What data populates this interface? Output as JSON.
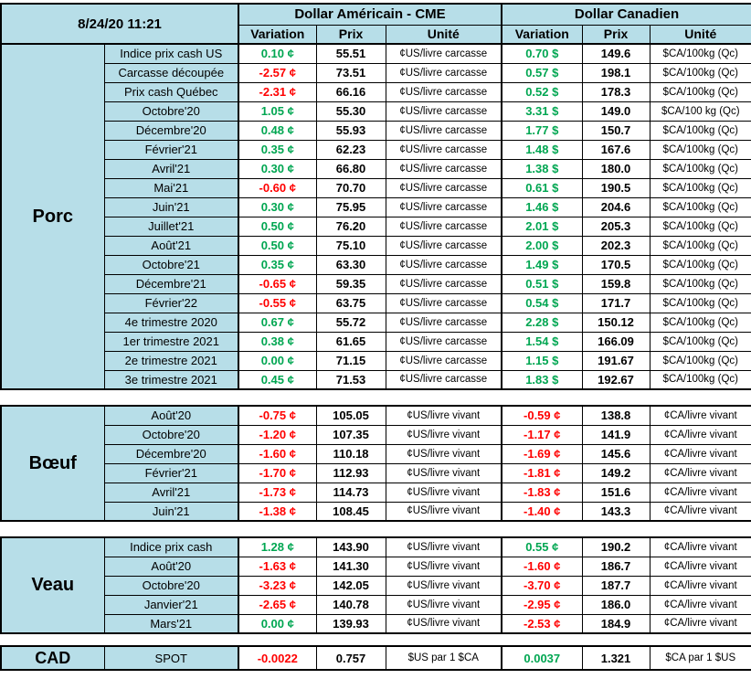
{
  "header": {
    "timestamp": "8/24/20 11:21",
    "us_title": "Dollar Américain - CME",
    "ca_title": "Dollar Canadien",
    "col_headers": [
      "Variation",
      "Prix",
      "Unité"
    ]
  },
  "colors": {
    "positive": "#00A651",
    "negative": "#FF0000",
    "header_bg": "#B7DEE8",
    "border": "#000000"
  },
  "sections": [
    {
      "id": "porc",
      "name": "Porc",
      "rows": [
        {
          "label": "Indice prix cash US",
          "us_var": "0.10 ¢",
          "us_prix": "55.51",
          "us_unit": "¢US/livre carcasse",
          "ca_var": "0.70 $",
          "ca_prix": "149.6",
          "ca_unit": "$CA/100kg (Qc)"
        },
        {
          "label": "Carcasse découpée",
          "us_var": "-2.57 ¢",
          "us_prix": "73.51",
          "us_unit": "¢US/livre carcasse",
          "ca_var": "0.57 $",
          "ca_prix": "198.1",
          "ca_unit": "$CA/100kg (Qc)"
        },
        {
          "label": "Prix cash Québec",
          "us_var": "-2.31 ¢",
          "us_prix": "66.16",
          "us_unit": "¢US/livre carcasse",
          "ca_var": "0.52 $",
          "ca_prix": "178.3",
          "ca_unit": "$CA/100kg (Qc)"
        },
        {
          "label": "Octobre'20",
          "us_var": "1.05 ¢",
          "us_prix": "55.30",
          "us_unit": "¢US/livre carcasse",
          "ca_var": "3.31 $",
          "ca_prix": "149.0",
          "ca_unit": "$CA/100 kg (Qc)"
        },
        {
          "label": "Décembre'20",
          "us_var": "0.48 ¢",
          "us_prix": "55.93",
          "us_unit": "¢US/livre carcasse",
          "ca_var": "1.77 $",
          "ca_prix": "150.7",
          "ca_unit": "$CA/100kg (Qc)"
        },
        {
          "label": "Février'21",
          "us_var": "0.35 ¢",
          "us_prix": "62.23",
          "us_unit": "¢US/livre carcasse",
          "ca_var": "1.48 $",
          "ca_prix": "167.6",
          "ca_unit": "$CA/100kg (Qc)"
        },
        {
          "label": "Avril'21",
          "us_var": "0.30 ¢",
          "us_prix": "66.80",
          "us_unit": "¢US/livre carcasse",
          "ca_var": "1.38 $",
          "ca_prix": "180.0",
          "ca_unit": "$CA/100kg (Qc)"
        },
        {
          "label": "Mai'21",
          "us_var": "-0.60 ¢",
          "us_prix": "70.70",
          "us_unit": "¢US/livre carcasse",
          "ca_var": "0.61 $",
          "ca_prix": "190.5",
          "ca_unit": "$CA/100kg (Qc)"
        },
        {
          "label": "Juin'21",
          "us_var": "0.30 ¢",
          "us_prix": "75.95",
          "us_unit": "¢US/livre carcasse",
          "ca_var": "1.46 $",
          "ca_prix": "204.6",
          "ca_unit": "$CA/100kg (Qc)"
        },
        {
          "label": "Juillet'21",
          "us_var": "0.50 ¢",
          "us_prix": "76.20",
          "us_unit": "¢US/livre carcasse",
          "ca_var": "2.01 $",
          "ca_prix": "205.3",
          "ca_unit": "$CA/100kg (Qc)"
        },
        {
          "label": "Août'21",
          "us_var": "0.50 ¢",
          "us_prix": "75.10",
          "us_unit": "¢US/livre carcasse",
          "ca_var": "2.00 $",
          "ca_prix": "202.3",
          "ca_unit": "$CA/100kg (Qc)"
        },
        {
          "label": "Octobre'21",
          "us_var": "0.35 ¢",
          "us_prix": "63.30",
          "us_unit": "¢US/livre carcasse",
          "ca_var": "1.49 $",
          "ca_prix": "170.5",
          "ca_unit": "$CA/100kg (Qc)"
        },
        {
          "label": "Décembre'21",
          "us_var": "-0.65 ¢",
          "us_prix": "59.35",
          "us_unit": "¢US/livre carcasse",
          "ca_var": "0.51 $",
          "ca_prix": "159.8",
          "ca_unit": "$CA/100kg (Qc)"
        },
        {
          "label": "Février'22",
          "us_var": "-0.55 ¢",
          "us_prix": "63.75",
          "us_unit": "¢US/livre carcasse",
          "ca_var": "0.54 $",
          "ca_prix": "171.7",
          "ca_unit": "$CA/100kg (Qc)"
        },
        {
          "label": "4e trimestre 2020",
          "us_var": "0.67 ¢",
          "us_prix": "55.72",
          "us_unit": "¢US/livre carcasse",
          "ca_var": "2.28 $",
          "ca_prix": "150.12",
          "ca_unit": "$CA/100kg (Qc)"
        },
        {
          "label": "1er trimestre 2021",
          "us_var": "0.38 ¢",
          "us_prix": "61.65",
          "us_unit": "¢US/livre carcasse",
          "ca_var": "1.54 $",
          "ca_prix": "166.09",
          "ca_unit": "$CA/100kg (Qc)"
        },
        {
          "label": "2e trimestre 2021",
          "us_var": "0.00 ¢",
          "us_prix": "71.15",
          "us_unit": "¢US/livre carcasse",
          "ca_var": "1.15 $",
          "ca_prix": "191.67",
          "ca_unit": "$CA/100kg (Qc)"
        },
        {
          "label": "3e trimestre 2021",
          "us_var": "0.45 ¢",
          "us_prix": "71.53",
          "us_unit": "¢US/livre carcasse",
          "ca_var": "1.83 $",
          "ca_prix": "192.67",
          "ca_unit": "$CA/100kg (Qc)"
        }
      ]
    },
    {
      "id": "boeuf",
      "name": "Bœuf",
      "rows": [
        {
          "label": "Août'20",
          "us_var": "-0.75 ¢",
          "us_prix": "105.05",
          "us_unit": "¢US/livre vivant",
          "ca_var": "-0.59 ¢",
          "ca_prix": "138.8",
          "ca_unit": "¢CA/livre vivant"
        },
        {
          "label": "Octobre'20",
          "us_var": "-1.20 ¢",
          "us_prix": "107.35",
          "us_unit": "¢US/livre vivant",
          "ca_var": "-1.17 ¢",
          "ca_prix": "141.9",
          "ca_unit": "¢CA/livre vivant"
        },
        {
          "label": "Décembre'20",
          "us_var": "-1.60 ¢",
          "us_prix": "110.18",
          "us_unit": "¢US/livre vivant",
          "ca_var": "-1.69 ¢",
          "ca_prix": "145.6",
          "ca_unit": "¢CA/livre vivant"
        },
        {
          "label": "Février'21",
          "us_var": "-1.70 ¢",
          "us_prix": "112.93",
          "us_unit": "¢US/livre vivant",
          "ca_var": "-1.81 ¢",
          "ca_prix": "149.2",
          "ca_unit": "¢CA/livre vivant"
        },
        {
          "label": "Avril'21",
          "us_var": "-1.73 ¢",
          "us_prix": "114.73",
          "us_unit": "¢US/livre vivant",
          "ca_var": "-1.83 ¢",
          "ca_prix": "151.6",
          "ca_unit": "¢CA/livre vivant"
        },
        {
          "label": "Juin'21",
          "us_var": "-1.38 ¢",
          "us_prix": "108.45",
          "us_unit": "¢US/livre vivant",
          "ca_var": "-1.40 ¢",
          "ca_prix": "143.3",
          "ca_unit": "¢CA/livre vivant"
        }
      ]
    },
    {
      "id": "veau",
      "name": "Veau",
      "rows": [
        {
          "label": "Indice prix cash",
          "us_var": "1.28 ¢",
          "us_prix": "143.90",
          "us_unit": "¢US/livre vivant",
          "ca_var": "0.55 ¢",
          "ca_prix": "190.2",
          "ca_unit": "¢CA/livre vivant"
        },
        {
          "label": "Août'20",
          "us_var": "-1.63 ¢",
          "us_prix": "141.30",
          "us_unit": "¢US/livre vivant",
          "ca_var": "-1.60 ¢",
          "ca_prix": "186.7",
          "ca_unit": "¢CA/livre vivant"
        },
        {
          "label": "Octobre'20",
          "us_var": "-3.23 ¢",
          "us_prix": "142.05",
          "us_unit": "¢US/livre vivant",
          "ca_var": "-3.70 ¢",
          "ca_prix": "187.7",
          "ca_unit": "¢CA/livre vivant"
        },
        {
          "label": "Janvier'21",
          "us_var": "-2.65 ¢",
          "us_prix": "140.78",
          "us_unit": "¢US/livre vivant",
          "ca_var": "-2.95 ¢",
          "ca_prix": "186.0",
          "ca_unit": "¢CA/livre vivant"
        },
        {
          "label": "Mars'21",
          "us_var": "0.00 ¢",
          "us_prix": "139.93",
          "us_unit": "¢US/livre vivant",
          "ca_var": "-2.53 ¢",
          "ca_prix": "184.9",
          "ca_unit": "¢CA/livre vivant"
        }
      ]
    },
    {
      "id": "cad",
      "name": "CAD",
      "rows": [
        {
          "label": "SPOT",
          "us_var": "-0.0022",
          "us_prix": "0.757",
          "us_unit": "$US par 1 $CA",
          "ca_var": "0.0037",
          "ca_prix": "1.321",
          "ca_unit": "$CA par 1 $US"
        }
      ]
    }
  ]
}
